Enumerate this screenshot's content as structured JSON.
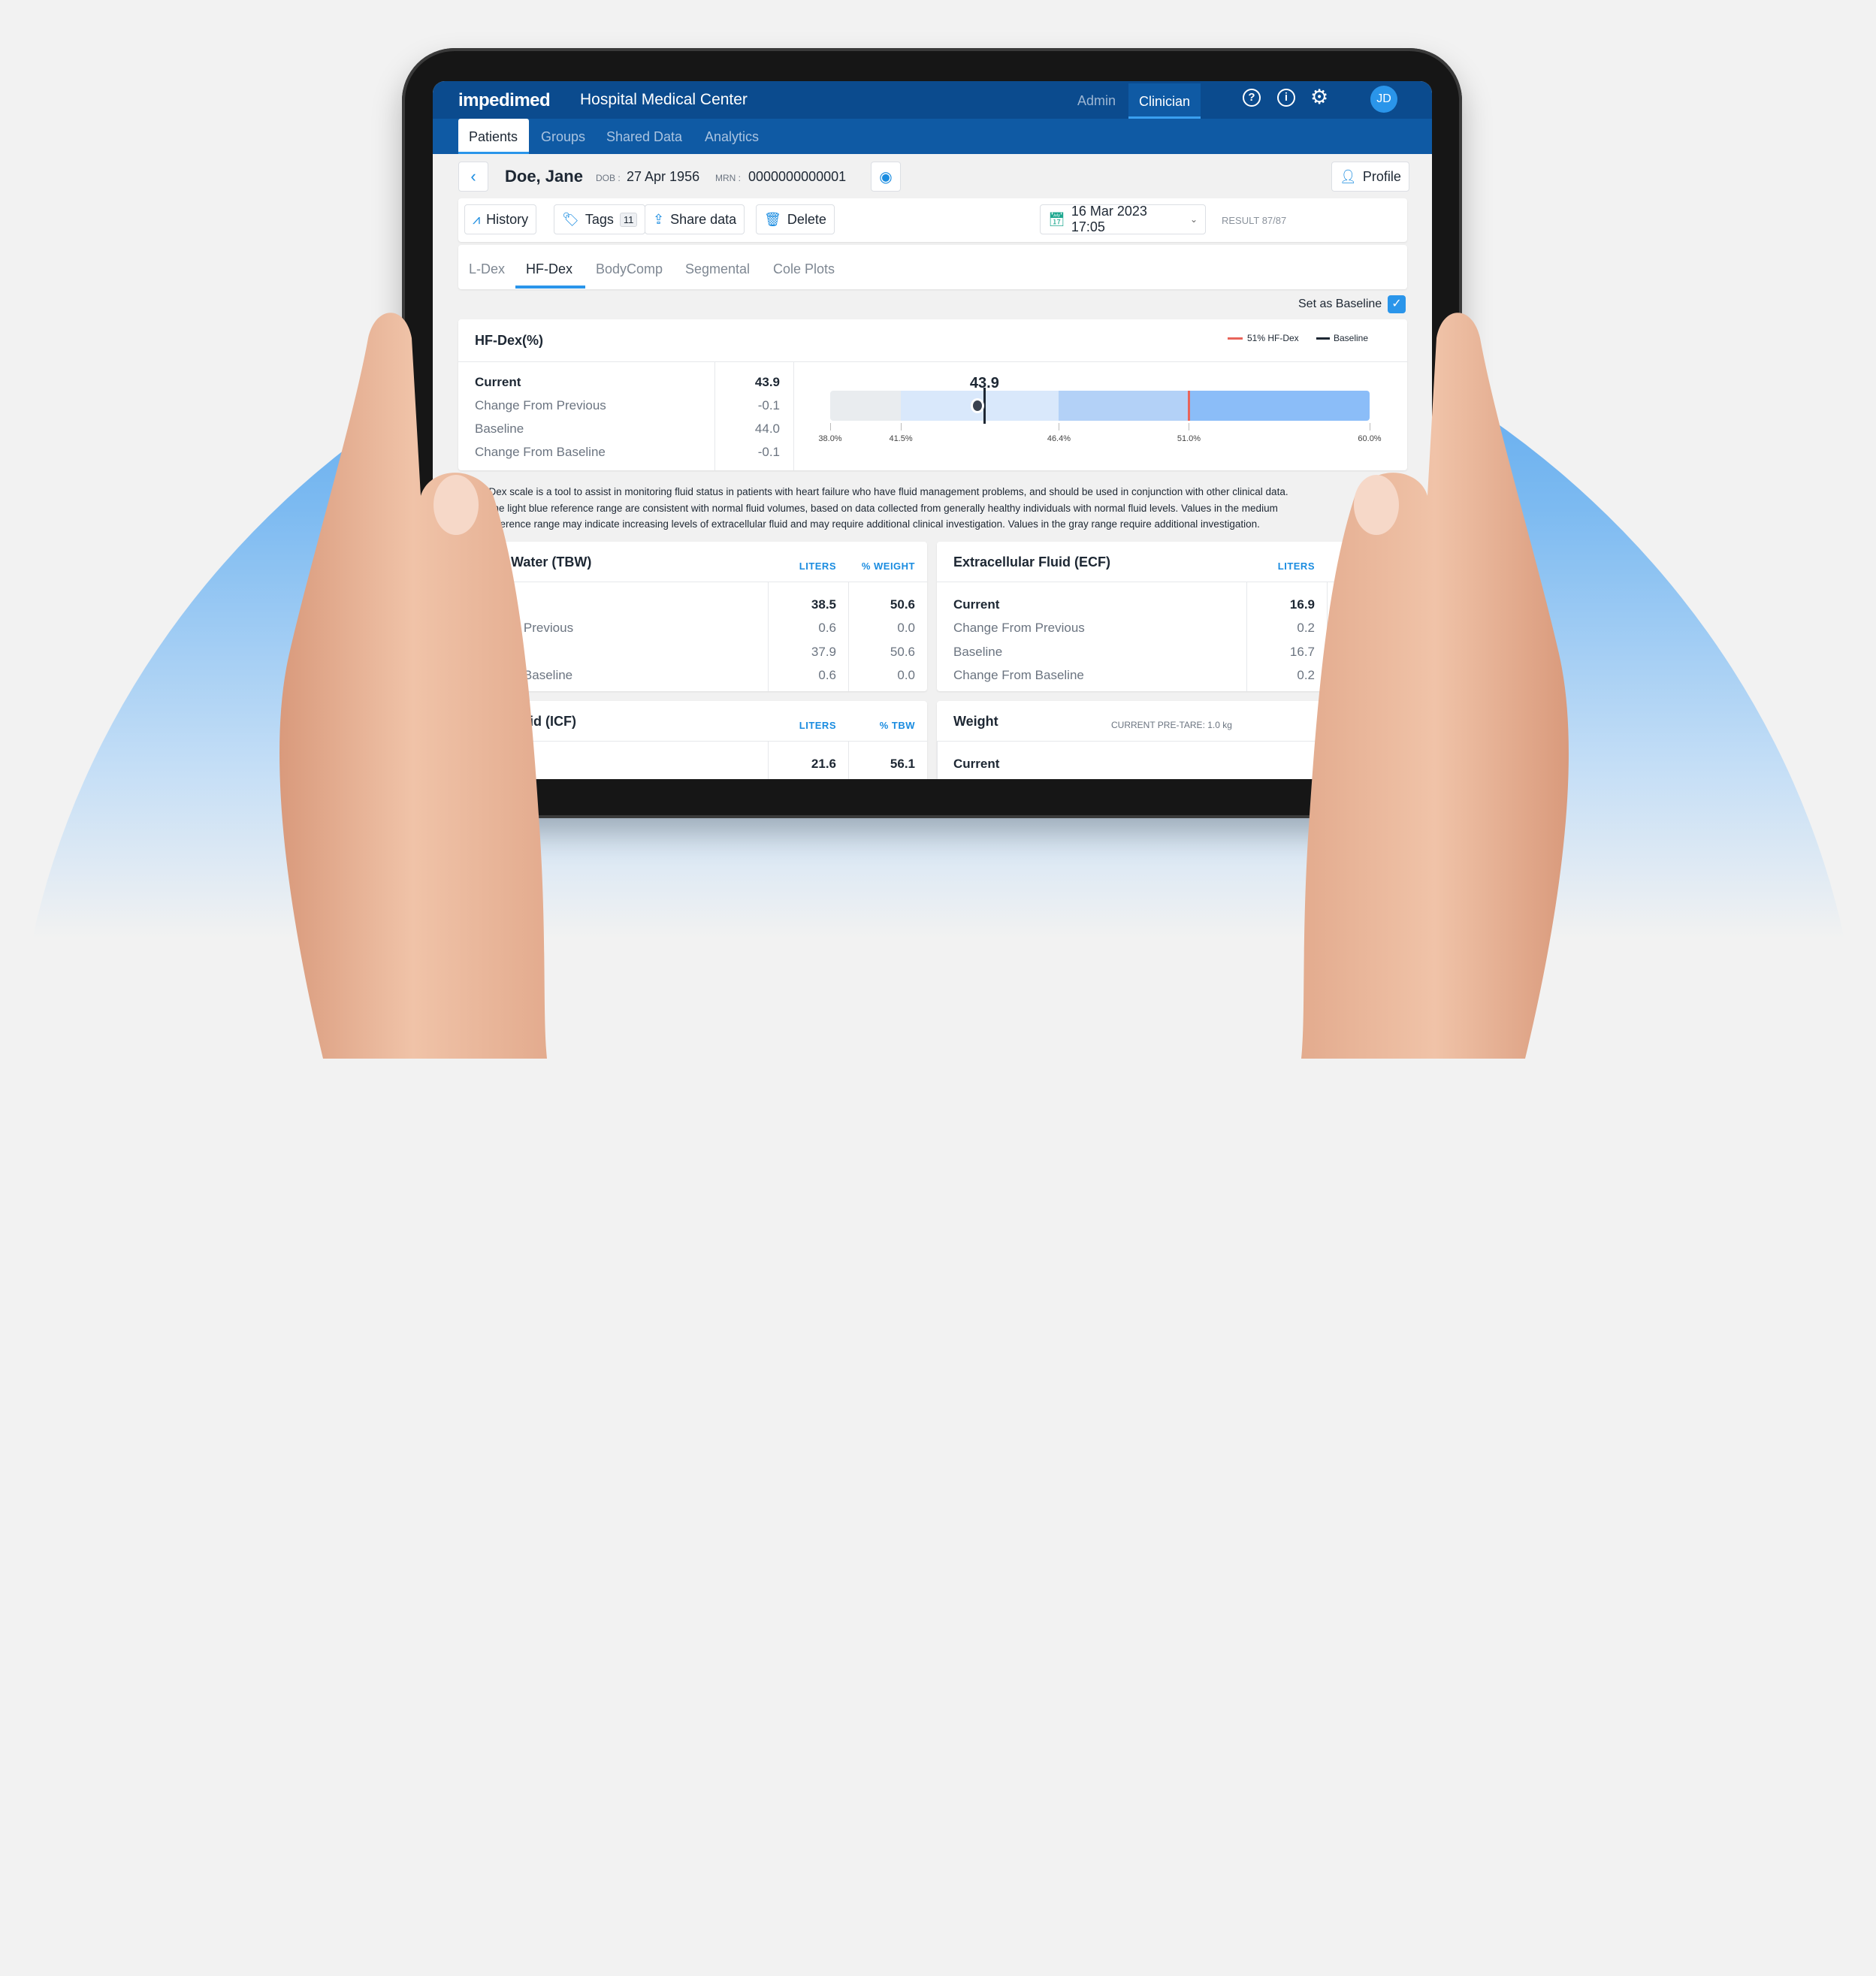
{
  "header": {
    "logo": "impedimed",
    "org": "Hospital Medical Center",
    "roles": [
      "Admin",
      "Clinician"
    ],
    "active_role": "Clinician",
    "avatar": "JD",
    "icons": [
      "help-icon",
      "info-icon",
      "gear-icon"
    ]
  },
  "nav": {
    "tabs": [
      "Patients",
      "Groups",
      "Shared Data",
      "Analytics"
    ],
    "active": "Patients"
  },
  "patient": {
    "name": "Doe, Jane",
    "dob_label": "DOB :",
    "dob": "27 Apr 1956",
    "mrn_label": "MRN :",
    "mrn": "0000000000001",
    "profile": "Profile"
  },
  "toolbar": {
    "history": "History",
    "tags": "Tags",
    "tags_count": "11",
    "share": "Share data",
    "delete": "Delete",
    "date": "16 Mar 2023 17:05",
    "result": "RESULT 87/87"
  },
  "tabs": {
    "items": [
      "L-Dex",
      "HF-Dex",
      "BodyComp",
      "Segmental",
      "Cole Plots"
    ],
    "active": "HF-Dex"
  },
  "baseline": {
    "label": "Set as Baseline",
    "checked": true
  },
  "hfdex": {
    "title": "HF-Dex(%)",
    "legend": [
      "51% HF-Dex",
      "Baseline"
    ],
    "rows": [
      {
        "label": "Current",
        "value": "43.9"
      },
      {
        "label": "Change From Previous",
        "value": "-0.1"
      },
      {
        "label": "Baseline",
        "value": "44.0"
      },
      {
        "label": "Change From Baseline",
        "value": "-0.1"
      }
    ],
    "gauge": {
      "current": 43.9,
      "current_label": "43.9",
      "baseline": 44.0,
      "threshold": 51.0,
      "ticks": [
        "38.0%",
        "41.5%",
        "46.4%",
        "51.0%",
        "60.0%"
      ],
      "tick_values": [
        38,
        41.5,
        46.4,
        51,
        60
      ],
      "colors": {
        "gray": "#e9ecef",
        "light": "#d9e8fb",
        "medium": "#b3d1f7",
        "dark": "#8bbdf8",
        "threshold": "#e8645a",
        "baseline": "#1d2733"
      }
    }
  },
  "description": [
    "HF-Dex scale is a tool to assist in monitoring fluid status in patients with heart failure who have fluid management problems, and should be used in conjunction with other clinical data.",
    "s in the light blue reference range are consistent with normal fluid volumes, based on data collected from generally healthy individuals with normal fluid levels. Values in the medium",
    "lue reference range may indicate increasing levels of extracellular fluid and may require additional clinical investigation. Values in the gray range require additional investigation."
  ],
  "tbw": {
    "title": "al Body Water (TBW)",
    "units": [
      "LITERS",
      "% WEIGHT"
    ],
    "rows": [
      {
        "label": "rrent",
        "a": "38.5",
        "b": "50.6"
      },
      {
        "label": "ange From Previous",
        "a": "0.6",
        "b": "0.0"
      },
      {
        "label": "seline",
        "a": "37.9",
        "b": "50.6"
      },
      {
        "label": "ange From Baseline",
        "a": "0.6",
        "b": "0.0"
      }
    ]
  },
  "ecf": {
    "title": "Extracellular Fluid (ECF)",
    "units": [
      "LITERS"
    ],
    "rows": [
      {
        "label": "Current",
        "a": "16.9"
      },
      {
        "label": "Change From Previous",
        "a": "0.2"
      },
      {
        "label": "Baseline",
        "a": "16.7"
      },
      {
        "label": "Change From Baseline",
        "a": "0.2"
      }
    ]
  },
  "icf": {
    "title": "cellular Fluid (ICF)",
    "units": [
      "LITERS",
      "% TBW"
    ],
    "rows": [
      {
        "label": "t",
        "a": "21.6",
        "b": "56.1"
      }
    ]
  },
  "weight": {
    "title": "Weight",
    "pretare": "CURRENT PRE-TARE: 1.0 kg",
    "rows": [
      {
        "label": "Current"
      }
    ]
  }
}
